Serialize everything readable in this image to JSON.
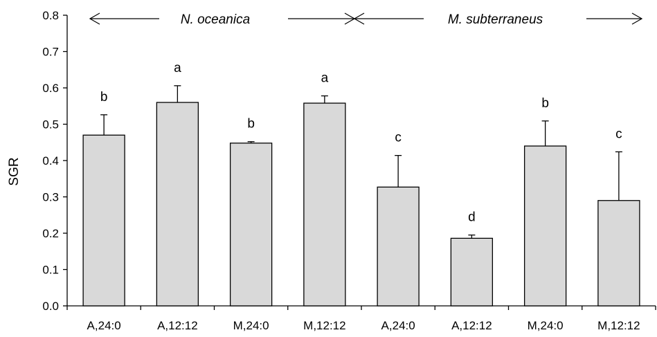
{
  "chart_data": {
    "type": "bar",
    "ylabel": "SGR",
    "xlabel": "",
    "ylim": [
      0,
      0.8
    ],
    "yticks": [
      "0.0",
      "0.1",
      "0.2",
      "0.3",
      "0.4",
      "0.5",
      "0.6",
      "0.7",
      "0.8"
    ],
    "categories": [
      "A,24:0",
      "A,12:12",
      "M,24:0",
      "M,12:12",
      "A,24:0",
      "A,12:12",
      "M,24:0",
      "M,12:12"
    ],
    "values": [
      0.47,
      0.56,
      0.448,
      0.558,
      0.327,
      0.186,
      0.44,
      0.29
    ],
    "errors": [
      0.056,
      0.046,
      0.004,
      0.02,
      0.087,
      0.009,
      0.069,
      0.134
    ],
    "significance_letters": [
      "b",
      "a",
      "b",
      "a",
      "c",
      "d",
      "b",
      "c"
    ],
    "bar_color": "#d9d9d9",
    "groups": [
      {
        "label": "N. oceanica",
        "categories_range": [
          0,
          3
        ]
      },
      {
        "label": "M. subterraneus",
        "categories_range": [
          4,
          7
        ]
      }
    ],
    "grid": false,
    "legend": "none"
  }
}
